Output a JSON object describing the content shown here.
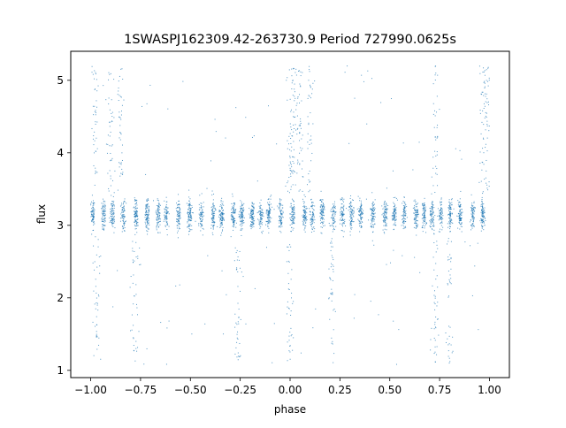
{
  "chart_data": {
    "type": "scatter",
    "title": "1SWASPJ162309.42-263730.9 Period 727990.0625s",
    "xlabel": "phase",
    "ylabel": "flux",
    "xlim": [
      -1.1,
      1.1
    ],
    "ylim": [
      0.9,
      5.4
    ],
    "xticks": [
      -1.0,
      -0.75,
      -0.5,
      -0.25,
      0.0,
      0.25,
      0.5,
      0.75,
      1.0
    ],
    "xtick_labels": [
      "−1.00",
      "−0.75",
      "−0.50",
      "−0.25",
      "0.00",
      "0.25",
      "0.50",
      "0.75",
      "1.00"
    ],
    "yticks": [
      1,
      2,
      3,
      4,
      5
    ],
    "ytick_labels": [
      "1",
      "2",
      "3",
      "4",
      "5"
    ],
    "grid": false,
    "marker_color": "#1f77b4",
    "series": [
      {
        "values_summary": {
          "phase_range": [
            -1.0,
            1.0
          ],
          "baseline_flux": 3.15,
          "typical_spread": 0.15,
          "flux_range": [
            1.05,
            5.2
          ],
          "high_outlier_phases": [
            -0.98,
            -0.9,
            -0.85,
            0.0,
            0.02,
            0.05,
            0.1,
            0.73,
            0.97,
            0.99
          ],
          "low_outlier_phases": [
            -0.97,
            -0.78,
            -0.26,
            0.0,
            0.21,
            0.73,
            0.8
          ]
        }
      }
    ]
  }
}
